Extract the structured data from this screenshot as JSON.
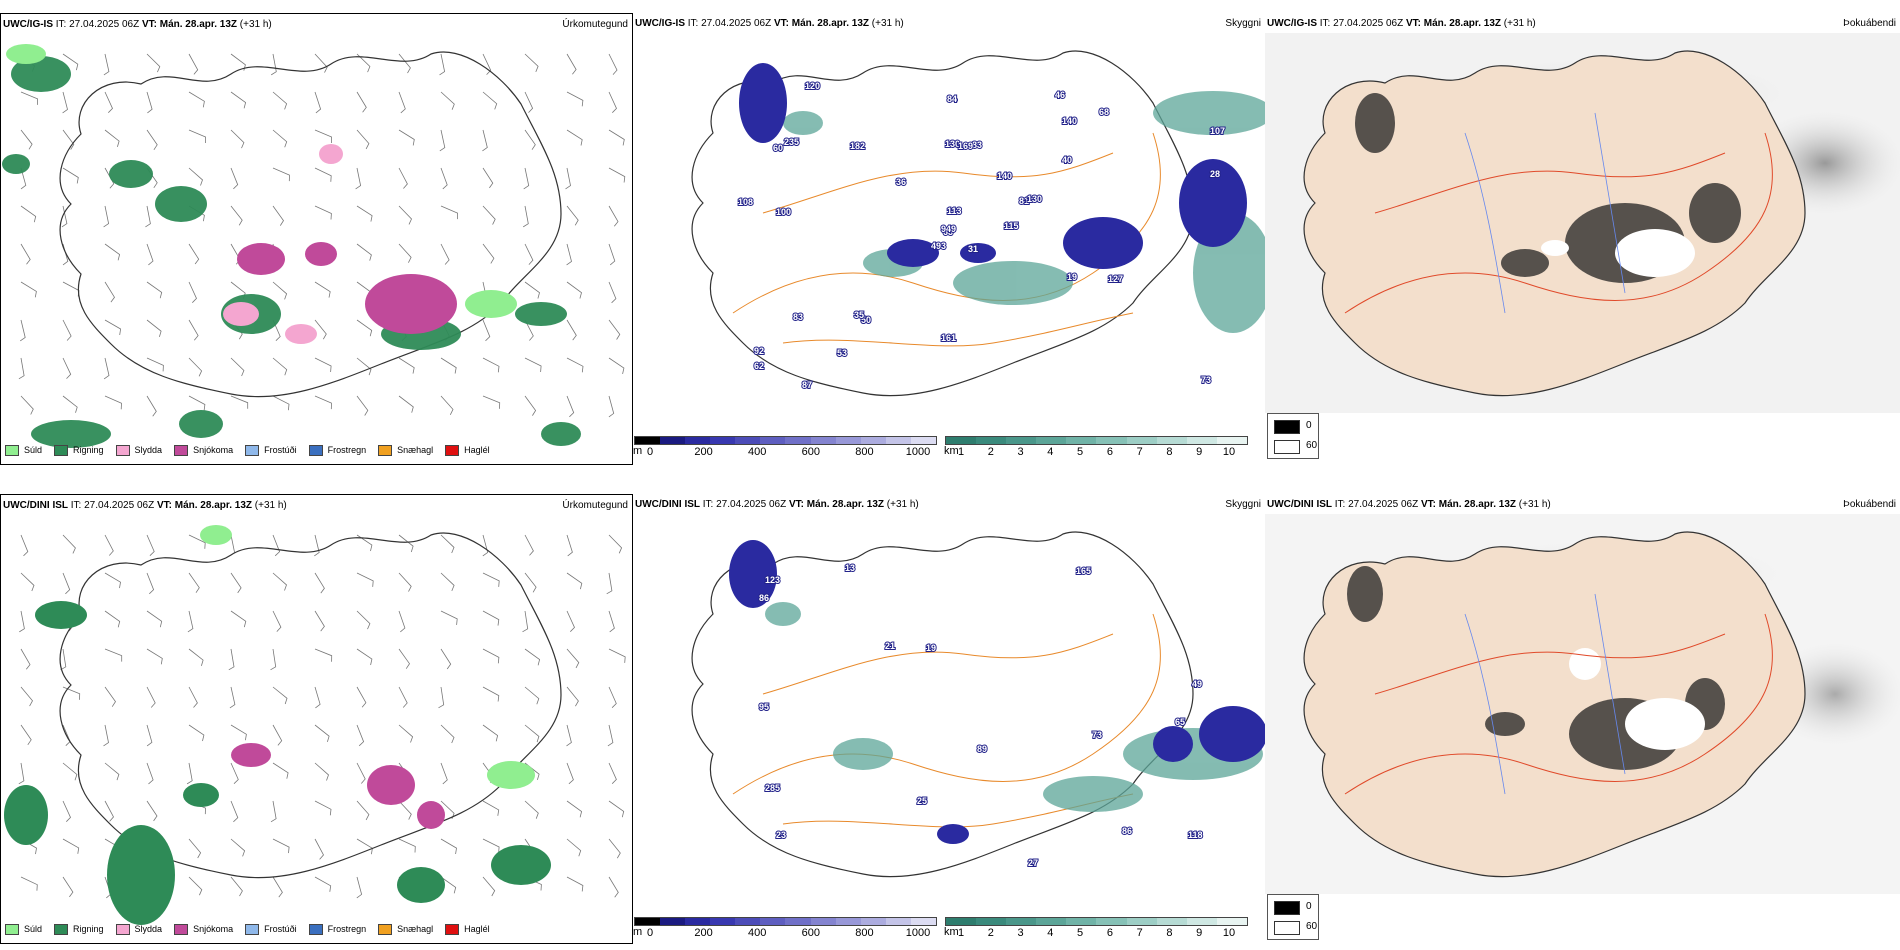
{
  "rows": [
    {
      "model": "UWC/IG-IS",
      "it_label": "IT:",
      "it_value": "27.04.2025 06Z",
      "vt_label": "VT:",
      "vt_value": "Mán. 28.apr. 13Z",
      "lead": "(+31 h)",
      "panels": {
        "precip_title": "Úrkomutegund",
        "cloud_title": "Skyggni",
        "fog_title": "Þokuábendi"
      },
      "cloud_labels": [
        "31",
        "60",
        "63",
        "92",
        "81",
        "50",
        "46",
        "83",
        "140",
        "115",
        "120",
        "73",
        "100",
        "107",
        "493",
        "40",
        "87",
        "130",
        "140",
        "83",
        "36",
        "62",
        "53",
        "169",
        "130",
        "127",
        "235",
        "84",
        "108",
        "19",
        "28",
        "949",
        "161",
        "113",
        "182",
        "68",
        "35"
      ],
      "fog_legend": {
        "min": "0",
        "max": "60"
      }
    },
    {
      "model": "UWC/DINI ISL",
      "it_label": "IT:",
      "it_value": "27.04.2025 06Z",
      "vt_label": "VT:",
      "vt_value": "Mán. 28.apr. 13Z",
      "lead": "(+31 h)",
      "panels": {
        "precip_title": "Úrkomutegund",
        "cloud_title": "Skyggni",
        "fog_title": "Þokuábendi"
      },
      "cloud_labels": [
        "73",
        "65",
        "23",
        "13",
        "19",
        "86",
        "285",
        "165",
        "21",
        "27",
        "86",
        "95",
        "123",
        "118",
        "25",
        "49",
        "89"
      ],
      "fog_legend": {
        "min": "0",
        "max": "60"
      }
    }
  ],
  "precip_legend": [
    {
      "label": "Súld",
      "color": "#90ee90"
    },
    {
      "label": "Rigning",
      "color": "#2e8b57"
    },
    {
      "label": "Slydda",
      "color": "#f4a6d0"
    },
    {
      "label": "Snjókoma",
      "color": "#c04a9a"
    },
    {
      "label": "Frostúði",
      "color": "#8fb8ea"
    },
    {
      "label": "Frostregn",
      "color": "#3a6fbf"
    },
    {
      "label": "Snæhagl",
      "color": "#f0a020"
    },
    {
      "label": "Haglél",
      "color": "#e01010"
    }
  ],
  "cloud_base_scale": {
    "unit": "m",
    "ticks": [
      "0",
      "200",
      "400",
      "600",
      "800",
      "1000"
    ],
    "colors": [
      "#000000",
      "#1a1a80",
      "#2a2aa0",
      "#3838b0",
      "#4c4cb8",
      "#5e5ec0",
      "#7070c8",
      "#8484d0",
      "#9898d8",
      "#acacdf",
      "#c4c4e8",
      "#dcdcf2"
    ]
  },
  "visibility_scale": {
    "unit": "km",
    "ticks": [
      "1",
      "2",
      "3",
      "4",
      "5",
      "6",
      "7",
      "8",
      "9",
      "10"
    ],
    "colors": [
      "#2e7d6e",
      "#3a8a7c",
      "#4a978a",
      "#5ca598",
      "#70b3a7",
      "#86c1b6",
      "#9dcec5",
      "#b6dbd4",
      "#cfe8e3",
      "#e8f4f1"
    ]
  },
  "colors": {
    "roads": "#e88a2c",
    "roads_red": "#e04a2a",
    "rivers": "#6688ee",
    "land_beige": "#f3dfcc",
    "coast": "#222222"
  }
}
